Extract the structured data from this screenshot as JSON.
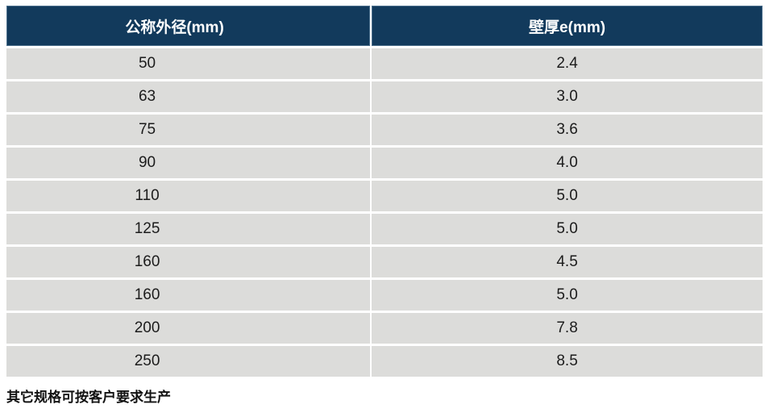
{
  "table": {
    "columns": [
      {
        "label": "公称外径(mm)"
      },
      {
        "label": "壁厚e(mm)"
      }
    ],
    "rows": [
      {
        "outer_diameter": "50",
        "wall_thickness": "2.4"
      },
      {
        "outer_diameter": "63",
        "wall_thickness": "3.0"
      },
      {
        "outer_diameter": "75",
        "wall_thickness": "3.6"
      },
      {
        "outer_diameter": "90",
        "wall_thickness": "4.0"
      },
      {
        "outer_diameter": "110",
        "wall_thickness": "5.0"
      },
      {
        "outer_diameter": "125",
        "wall_thickness": "5.0"
      },
      {
        "outer_diameter": "160",
        "wall_thickness": "4.5"
      },
      {
        "outer_diameter": "160",
        "wall_thickness": "5.0"
      },
      {
        "outer_diameter": "200",
        "wall_thickness": "7.8"
      },
      {
        "outer_diameter": "250",
        "wall_thickness": "8.5"
      }
    ]
  },
  "footer": {
    "note": "其它规格可按客户要求生产"
  },
  "colors": {
    "header_bg": "#123a5c",
    "header_text": "#ffffff",
    "row_bg": "#dcdcda",
    "separator": "#ffffff",
    "body_text": "#1c1c1c"
  }
}
